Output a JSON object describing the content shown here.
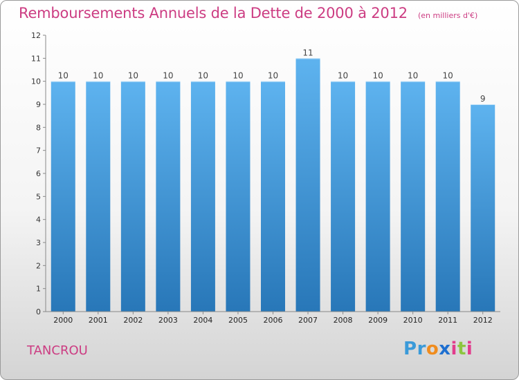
{
  "title": "Remboursements Annuels de la Dette de 2000 à 2012",
  "unit": "(en milliers d'€)",
  "commune": "TANCROU",
  "logo": {
    "letters": [
      "P",
      "r",
      "o",
      "x",
      "i",
      "t",
      "i"
    ],
    "colors": [
      "#3a9ad9",
      "#3a9ad9",
      "#f08c1e",
      "#1e6fd0",
      "#e23c8c",
      "#8cc63f",
      "#e23c8c"
    ]
  },
  "colors": {
    "bar_top": "#5eb3ef",
    "bar_bottom": "#2877b8",
    "text_accent": "#cc3c82"
  },
  "chart_data": {
    "type": "bar",
    "title": "Remboursements Annuels de la Dette de 2000 à 2012",
    "categories": [
      "2000",
      "2001",
      "2002",
      "2003",
      "2004",
      "2005",
      "2006",
      "2007",
      "2008",
      "2009",
      "2010",
      "2011",
      "2012"
    ],
    "values": [
      10,
      10,
      10,
      10,
      10,
      10,
      10,
      11,
      10,
      10,
      10,
      10,
      9
    ],
    "data_labels": [
      "10",
      "10",
      "10",
      "10",
      "10",
      "10",
      "10",
      "11",
      "10",
      "10",
      "10",
      "10",
      "9"
    ],
    "ylim": [
      0,
      12
    ],
    "yticks": [
      0,
      1,
      2,
      3,
      4,
      5,
      6,
      7,
      8,
      9,
      10,
      11,
      12
    ],
    "grid": false,
    "legend": "none"
  }
}
